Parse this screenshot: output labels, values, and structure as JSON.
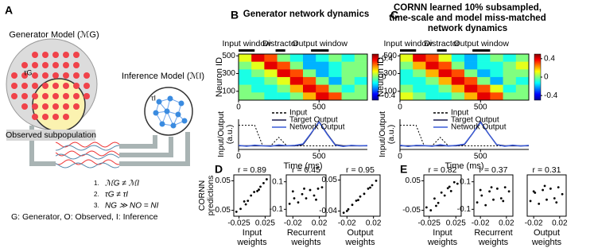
{
  "diagram": {
    "panel": "A",
    "generator": "Generator Model (ℳG)",
    "tau_g": "τG",
    "inference": "Inference Model (ℳI)",
    "tau_i": "τI",
    "observed": "Observed subpopulation",
    "conditions": [
      {
        "n": "1.",
        "text": "ℳG ≠ ℳI"
      },
      {
        "n": "2.",
        "text": "τG ≠ τI"
      },
      {
        "n": "3.",
        "text": "NG ≫ NO = NI"
      }
    ],
    "legend": "G: Generator, O: Observed, I: Inference"
  },
  "chart_data": [
    {
      "type": "heatmap",
      "panel": "B",
      "title": [
        "Generator network dynamics"
      ],
      "ylabel": "Neuron ID",
      "windows": [
        {
          "label": "Input window",
          "start": 0,
          "end": 100
        },
        {
          "label": "Distractor",
          "start": 230,
          "end": 290
        },
        {
          "label": "Output window",
          "start": 450,
          "end": 560
        }
      ],
      "xlim": [
        0,
        800
      ],
      "xticks": [
        0,
        500
      ],
      "ylim": [
        0,
        520
      ],
      "yticks": [
        100,
        300,
        500
      ],
      "x": [
        40,
        120,
        200,
        280,
        360,
        440,
        520,
        600,
        680,
        760
      ],
      "y": [
        477,
        390,
        303,
        217,
        130,
        43
      ],
      "z": [
        [
          0.1,
          0.4,
          0.3,
          0.0,
          -0.1,
          -0.2,
          -0.1,
          0.0,
          -0.1,
          0.0
        ],
        [
          0.0,
          0.1,
          0.4,
          0.3,
          0.0,
          -0.2,
          -0.2,
          -0.1,
          0.0,
          0.0
        ],
        [
          -0.1,
          0.0,
          0.1,
          0.4,
          0.3,
          0.0,
          -0.2,
          -0.1,
          0.0,
          0.0
        ],
        [
          -0.1,
          -0.1,
          0.0,
          0.1,
          0.4,
          0.3,
          0.0,
          -0.2,
          0.0,
          -0.1
        ],
        [
          0.0,
          -0.1,
          -0.1,
          0.0,
          0.2,
          0.4,
          0.3,
          0.0,
          -0.1,
          0.0
        ],
        [
          0.0,
          0.0,
          -0.1,
          -0.1,
          0.0,
          0.2,
          0.4,
          0.3,
          0.0,
          0.0
        ]
      ],
      "zlim": [
        -0.5,
        0.5
      ],
      "colorbar_ticks": [
        0.4,
        0,
        -0.4
      ]
    },
    {
      "type": "line",
      "xlabel": "Time (ms)",
      "ylabel": [
        "Input/Output",
        "(a.u.)"
      ],
      "xlim": [
        0,
        800
      ],
      "xticks": [
        0,
        500
      ],
      "ylim": [
        -0.15,
        1.1
      ],
      "x": [
        0,
        50,
        100,
        150,
        200,
        250,
        300,
        350,
        400,
        450,
        500,
        550,
        600,
        650,
        700,
        750,
        800
      ],
      "series": [
        {
          "name": "Input",
          "color": "#000000",
          "style": "dashed",
          "values": [
            0.85,
            0.85,
            0.85,
            0,
            0,
            0.35,
            0,
            0,
            0,
            0,
            0,
            0,
            0,
            0,
            0,
            0,
            0
          ]
        },
        {
          "name": "Target Output",
          "color": "#1a1a4e",
          "style": "solid",
          "values": [
            0,
            0,
            0,
            0,
            0,
            0,
            0,
            0,
            0.05,
            0.5,
            1,
            0.5,
            0.05,
            0,
            0,
            0,
            0
          ]
        },
        {
          "name": "Network Output",
          "color": "#3a5bd9",
          "style": "solid",
          "values": [
            0.02,
            -0.02,
            0.03,
            0.0,
            -0.02,
            0.04,
            0.0,
            0.02,
            0.08,
            0.52,
            0.98,
            0.48,
            0.03,
            -0.03,
            0.02,
            0.0,
            0.01
          ]
        }
      ]
    },
    {
      "type": "heatmap",
      "panel": "C",
      "title": [
        "CORNN learned 10% subsampled,",
        "time-scale and model miss-matched",
        "network dynamics"
      ],
      "ylabel": "Neuron ID",
      "windows": [
        {
          "label": "Input window",
          "start": 0,
          "end": 100
        },
        {
          "label": "Distractor",
          "start": 230,
          "end": 290
        },
        {
          "label": "Output window",
          "start": 450,
          "end": 560
        }
      ],
      "xlim": [
        0,
        800
      ],
      "xticks": [
        0,
        500
      ],
      "ylim": [
        0,
        520
      ],
      "yticks": [
        100,
        300,
        500
      ],
      "x": [
        40,
        120,
        200,
        280,
        360,
        440,
        520,
        600,
        680,
        760
      ],
      "y": [
        477,
        390,
        303,
        217,
        130,
        43
      ],
      "z": [
        [
          0.1,
          0.4,
          0.3,
          0.1,
          -0.1,
          -0.2,
          -0.1,
          0.0,
          -0.1,
          0.0
        ],
        [
          0.0,
          0.2,
          0.4,
          0.3,
          0.0,
          -0.2,
          -0.1,
          -0.1,
          0.0,
          0.1
        ],
        [
          -0.1,
          0.0,
          0.2,
          0.4,
          0.3,
          0.0,
          -0.2,
          -0.1,
          0.0,
          0.0
        ],
        [
          -0.1,
          -0.1,
          0.0,
          0.2,
          0.4,
          0.3,
          0.0,
          -0.2,
          0.0,
          -0.1
        ],
        [
          0.0,
          -0.1,
          -0.1,
          0.0,
          0.2,
          0.4,
          0.3,
          0.1,
          -0.1,
          0.0
        ],
        [
          0.1,
          0.0,
          -0.1,
          -0.1,
          0.0,
          0.2,
          0.4,
          0.3,
          0.0,
          0.0
        ]
      ],
      "zlim": [
        -0.5,
        0.5
      ],
      "colorbar_ticks": [
        0.4,
        0,
        -0.4
      ]
    },
    {
      "type": "line",
      "xlabel": "Time (ms)",
      "ylabel": [
        "Input/Output",
        "(a.u.)"
      ],
      "xlim": [
        0,
        800
      ],
      "xticks": [
        0,
        500
      ],
      "ylim": [
        -0.15,
        1.1
      ],
      "x": [
        0,
        50,
        100,
        150,
        200,
        250,
        300,
        350,
        400,
        450,
        500,
        550,
        600,
        650,
        700,
        750,
        800
      ],
      "series": [
        {
          "name": "Input",
          "color": "#000000",
          "style": "dashed",
          "values": [
            0.85,
            0.85,
            0.85,
            0,
            0,
            0.35,
            0,
            0,
            0,
            0,
            0,
            0,
            0,
            0,
            0,
            0,
            0
          ]
        },
        {
          "name": "Target Output",
          "color": "#1a1a4e",
          "style": "solid",
          "values": [
            0,
            0,
            0,
            0,
            0,
            0,
            0,
            0,
            0.05,
            0.5,
            1,
            0.5,
            0.05,
            0,
            0,
            0,
            0
          ]
        },
        {
          "name": "Network Output",
          "color": "#3a5bd9",
          "style": "solid",
          "values": [
            0.03,
            -0.03,
            0.02,
            0.01,
            -0.02,
            0.05,
            -0.01,
            0.02,
            0.07,
            0.5,
            0.97,
            0.5,
            0.05,
            -0.02,
            0.03,
            -0.01,
            0.02
          ]
        }
      ]
    },
    {
      "type": "scatter",
      "panel": "D",
      "annotation": "r = 0.89",
      "ylabel": [
        "CORNN",
        "predictions"
      ],
      "xlabel": [
        "Input",
        "weights"
      ],
      "xlim": [
        -0.035,
        0.035
      ],
      "xticks": [
        -0.025,
        0.025
      ],
      "ylim": [
        -0.07,
        0.07
      ],
      "yticks": [
        0.05,
        -0.05
      ],
      "x": [
        -0.03,
        -0.022,
        -0.015,
        -0.008,
        -0.002,
        0.004,
        0.01,
        0.016,
        0.022,
        0.028,
        -0.012,
        0.013
      ],
      "y": [
        -0.055,
        -0.045,
        -0.02,
        -0.018,
        0.0,
        0.012,
        0.015,
        0.03,
        0.042,
        0.055,
        -0.03,
        0.02
      ]
    },
    {
      "type": "scatter",
      "annotation": "r = 0.45",
      "xlabel": [
        "Recurrent",
        "weights"
      ],
      "xlim": [
        -0.03,
        0.03
      ],
      "xticks": [
        -0.02,
        0.02
      ],
      "ylim": [
        -0.15,
        0.15
      ],
      "yticks": [
        0.1,
        -0.1
      ],
      "x": [
        -0.025,
        -0.018,
        -0.012,
        -0.006,
        0,
        0.006,
        0.012,
        0.018,
        0.024,
        -0.02,
        0.015,
        -0.003
      ],
      "y": [
        -0.06,
        -0.02,
        -0.05,
        0.01,
        -0.02,
        0.04,
        0.0,
        0.05,
        0.06,
        0.03,
        -0.03,
        0.05
      ]
    },
    {
      "type": "scatter",
      "annotation": "r = 0.95",
      "xlabel": [
        "Output",
        "weights"
      ],
      "xlim": [
        -0.03,
        0.03
      ],
      "xticks": [
        -0.02,
        0.02
      ],
      "ylim": [
        -0.055,
        0.065
      ],
      "yticks": [
        0.05,
        -0.04
      ],
      "x": [
        -0.025,
        -0.018,
        -0.012,
        -0.006,
        0,
        0.006,
        0.012,
        0.018,
        0.024,
        -0.02,
        0.015,
        -0.003
      ],
      "y": [
        -0.045,
        -0.035,
        -0.022,
        -0.01,
        0.002,
        0.01,
        0.025,
        0.035,
        0.048,
        -0.04,
        0.028,
        -0.008
      ]
    },
    {
      "type": "scatter",
      "panel": "E",
      "annotation": "r = 0.82",
      "xlabel": [
        "Input",
        "weights"
      ],
      "xlim": [
        -0.035,
        0.035
      ],
      "xticks": [
        -0.025,
        0.025
      ],
      "ylim": [
        -0.07,
        0.07
      ],
      "yticks": [
        0.05,
        -0.05
      ],
      "x": [
        -0.03,
        -0.022,
        -0.015,
        -0.008,
        -0.002,
        0.004,
        0.01,
        0.016,
        0.022,
        0.028,
        -0.012,
        0.013
      ],
      "y": [
        -0.04,
        -0.05,
        -0.01,
        -0.025,
        0.01,
        0.0,
        0.025,
        0.015,
        0.045,
        0.04,
        -0.035,
        0.03
      ]
    },
    {
      "type": "scatter",
      "annotation": "r = 0.37",
      "xlabel": [
        "Recurrent",
        "weights"
      ],
      "xlim": [
        -0.03,
        0.03
      ],
      "xticks": [
        -0.02,
        0.02
      ],
      "ylim": [
        -0.15,
        0.15
      ],
      "yticks": [
        0.1,
        -0.1
      ],
      "x": [
        -0.025,
        -0.018,
        -0.012,
        -0.006,
        0,
        0.006,
        0.012,
        0.018,
        0.024,
        -0.02,
        0.015,
        -0.003
      ],
      "y": [
        -0.05,
        0.0,
        -0.07,
        0.03,
        -0.03,
        0.05,
        -0.02,
        0.06,
        0.03,
        0.04,
        -0.04,
        0.06
      ]
    },
    {
      "type": "scatter",
      "annotation": "r = 0.31",
      "xlabel": [
        "Output",
        "weights"
      ],
      "xlim": [
        -0.03,
        0.03
      ],
      "xticks": [
        -0.02,
        0.02
      ],
      "ylim": [
        -0.15,
        0.15
      ],
      "yticks": [],
      "x": [
        -0.025,
        -0.018,
        -0.012,
        -0.006,
        0,
        0.006,
        0.012,
        0.018,
        0.024,
        -0.02,
        0.015,
        -0.003
      ],
      "y": [
        -0.04,
        0.02,
        -0.06,
        0.04,
        -0.03,
        0.05,
        -0.02,
        0.06,
        0.01,
        0.03,
        -0.05,
        0.07
      ]
    }
  ]
}
